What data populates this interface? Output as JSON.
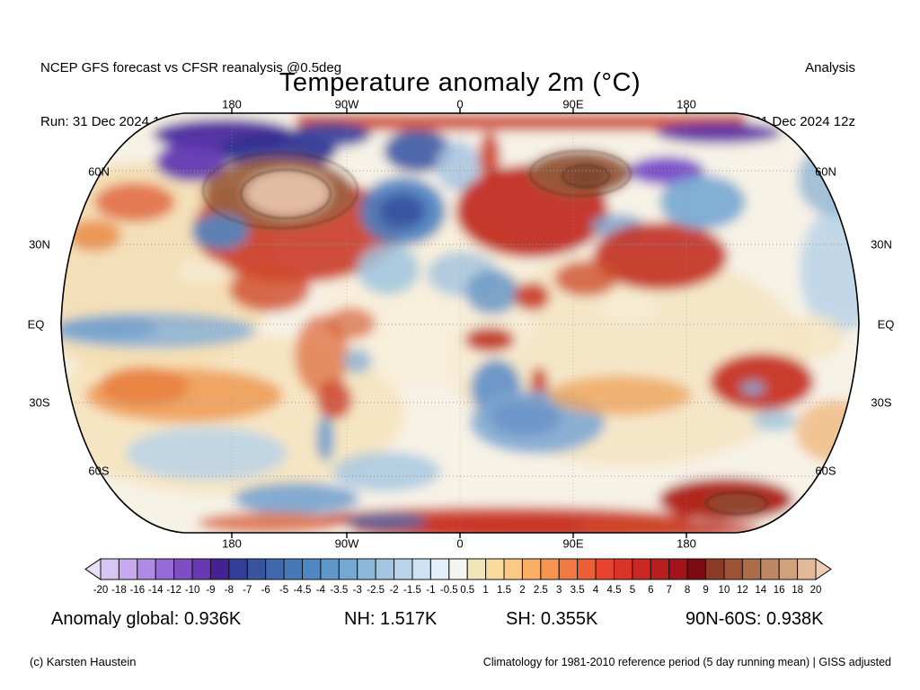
{
  "header": {
    "left_line1": "NCEP GFS forecast vs CFSR reanalysis @0.5deg",
    "left_line2": "Run: 31 Dec 2024 12z",
    "right_line1": "Analysis",
    "right_line2": "Valid: 31 Dec 2024 12z"
  },
  "title": "Temperature anomaly 2m (°C)",
  "map": {
    "top_axis_labels": [
      "180",
      "90W",
      "0",
      "90E",
      "180"
    ],
    "bottom_axis_labels": [
      "180",
      "90W",
      "0",
      "90E",
      "180"
    ],
    "left_axis_labels": [
      "60N",
      "30N",
      "EQ",
      "30S",
      "60S"
    ],
    "right_axis_labels": [
      "60N",
      "30N",
      "EQ",
      "30S",
      "60S"
    ]
  },
  "colorbar": {
    "tick_labels": [
      "-20",
      "-18",
      "-16",
      "-14",
      "-12",
      "-10",
      "-9",
      "-8",
      "-7",
      "-6",
      "-5",
      "-4.5",
      "-4",
      "-3.5",
      "-3",
      "-2.5",
      "-2",
      "-1.5",
      "-1",
      "-0.5",
      "0.5",
      "1",
      "1.5",
      "2",
      "2.5",
      "3",
      "3.5",
      "4",
      "4.5",
      "5",
      "6",
      "7",
      "8",
      "9",
      "10",
      "12",
      "14",
      "16",
      "18",
      "20"
    ],
    "cell_colors": [
      "#d8c6f2",
      "#c6a9ee",
      "#af8ae4",
      "#9769d6",
      "#7f4ec4",
      "#6738b4",
      "#452192",
      "#333e9a",
      "#39539f",
      "#3f68ad",
      "#4579b8",
      "#4e87c1",
      "#5f98ca",
      "#74a7d2",
      "#8cb8dc",
      "#a3c6e2",
      "#b7d4ea",
      "#cde2f2",
      "#e2eef8",
      "#f6f4ef",
      "#f1e6b8",
      "#f8da9c",
      "#fcc985",
      "#fab167",
      "#f69551",
      "#f07841",
      "#ec5f36",
      "#e5452c",
      "#da3428",
      "#cb2823",
      "#b81e1e",
      "#a2141a",
      "#7c0a12",
      "#8c3c26",
      "#9d5233",
      "#ad6c48",
      "#bf8763",
      "#d1a17e",
      "#e2ba9a"
    ],
    "left_arrow_color": "#e7e0f7",
    "right_arrow_color": "#f0ccb2"
  },
  "stats": {
    "global": "Anomaly global: 0.936K",
    "nh": "NH: 1.517K",
    "sh": "SH: 0.355K",
    "band": "90N-60S: 0.938K"
  },
  "footer": {
    "left": "(c) Karsten Haustein",
    "right": "Climatology for 1981-2010 reference period (5 day running mean) | GISS adjusted"
  },
  "chart_data": {
    "type": "heatmap",
    "title": "Temperature anomaly 2m (°C)",
    "projection": "robinson-world-map",
    "units": "°C",
    "model": "NCEP GFS forecast vs CFSR reanalysis @0.5deg",
    "run": "31 Dec 2024 12z",
    "valid": "31 Dec 2024 12z",
    "mode": "Analysis",
    "colorbar_levels": [
      -20,
      -18,
      -16,
      -14,
      -12,
      -10,
      -9,
      -8,
      -7,
      -6,
      -5,
      -4.5,
      -4,
      -3.5,
      -3,
      -2.5,
      -2,
      -1.5,
      -1,
      -0.5,
      0.5,
      1,
      1.5,
      2,
      2.5,
      3,
      3.5,
      4,
      4.5,
      5,
      6,
      7,
      8,
      9,
      10,
      12,
      14,
      16,
      18,
      20
    ],
    "colorbar_colors": [
      "#d8c6f2",
      "#c6a9ee",
      "#af8ae4",
      "#9769d6",
      "#7f4ec4",
      "#6738b4",
      "#452192",
      "#333e9a",
      "#39539f",
      "#3f68ad",
      "#4579b8",
      "#4e87c1",
      "#5f98ca",
      "#74a7d2",
      "#8cb8dc",
      "#a3c6e2",
      "#b7d4ea",
      "#cde2f2",
      "#e2eef8",
      "#f6f4ef",
      "#f1e6b8",
      "#f8da9c",
      "#fcc985",
      "#fab167",
      "#f69551",
      "#f07841",
      "#ec5f36",
      "#e5452c",
      "#da3428",
      "#cb2823",
      "#b81e1e",
      "#a2141a",
      "#7c0a12",
      "#8c3c26",
      "#9d5233",
      "#ad6c48",
      "#bf8763",
      "#d1a17e",
      "#e2ba9a"
    ],
    "lat_gridlines": [
      "60N",
      "30N",
      "EQ",
      "30S",
      "60S"
    ],
    "lon_gridlines": [
      "180",
      "90W",
      "0",
      "90E",
      "180"
    ],
    "stats": {
      "global_anomaly_K": 0.936,
      "nh_anomaly_K": 1.517,
      "sh_anomaly_K": 0.355,
      "band_90N_60S_anomaly_K": 0.938
    },
    "climatology": "1981-2010 reference period (5 day running mean), GISS adjusted"
  }
}
